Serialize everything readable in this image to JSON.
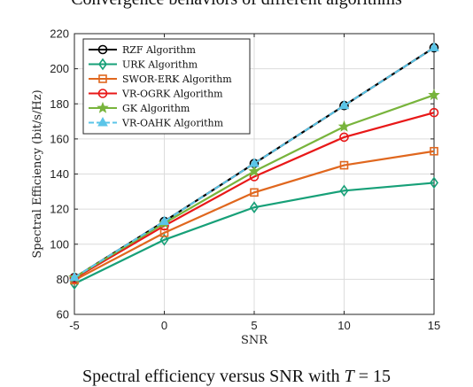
{
  "captions": {
    "top": "Convergence behaviors of different algorithms",
    "bottom_main": "Spectral efficiency versus SNR with",
    "bottom_var": "T",
    "bottom_rest": " = 15"
  },
  "chart_data": {
    "type": "line",
    "x": [
      -5,
      0,
      5,
      10,
      15
    ],
    "xlabel": "SNR",
    "ylabel": "Spectral Efficiency (bit/s/Hz)",
    "xlim": [
      -5,
      15
    ],
    "ylim": [
      60,
      220
    ],
    "xticks": [
      "-5",
      "0",
      "5",
      "10",
      "15"
    ],
    "yticks": [
      "60",
      "80",
      "100",
      "120",
      "140",
      "160",
      "180",
      "200",
      "220"
    ],
    "grid": true,
    "legend_position": "top-left",
    "series": [
      {
        "name": "RZF Algorithm",
        "color": "#000000",
        "marker": "circle",
        "dash": "solid",
        "values": [
          81,
          113,
          146,
          179,
          212
        ]
      },
      {
        "name": "URK Algorithm",
        "color": "#17a078",
        "marker": "diamond",
        "dash": "solid",
        "values": [
          77.5,
          102.5,
          121,
          130.5,
          135
        ]
      },
      {
        "name": "SWOR-ERK Algorithm",
        "color": "#e0671e",
        "marker": "square",
        "dash": "solid",
        "values": [
          79.5,
          106.5,
          129.5,
          145,
          153
        ]
      },
      {
        "name": "VR-OGRK Algorithm",
        "color": "#e81818",
        "marker": "circle",
        "dash": "solid",
        "values": [
          80.5,
          110.5,
          138.5,
          161,
          175
        ]
      },
      {
        "name": "GK Algorithm",
        "color": "#78b43c",
        "marker": "star",
        "dash": "solid",
        "values": [
          81,
          112,
          141.5,
          167,
          185
        ]
      },
      {
        "name": "VR-OAHK Algorithm",
        "color": "#5bc5e8",
        "marker": "triangle",
        "dash": "dashed",
        "values": [
          81,
          113,
          146,
          179,
          212
        ]
      }
    ]
  }
}
